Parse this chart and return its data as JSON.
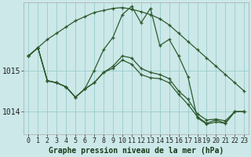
{
  "title": "Graphe pression niveau de la mer (hPa)",
  "bg_color": "#cce8e8",
  "line_color": "#2d5a2d",
  "grid_color": "#99cccc",
  "ylim": [
    1013.45,
    1016.65
  ],
  "ytick_vals": [
    1014.0,
    1015.0
  ],
  "xtick_vals": [
    0,
    1,
    2,
    3,
    4,
    5,
    6,
    7,
    8,
    9,
    10,
    11,
    12,
    13,
    14,
    15,
    16,
    17,
    18,
    19,
    20,
    21,
    22,
    23
  ],
  "series": [
    [
      1015.35,
      1015.55,
      1015.75,
      1015.9,
      1016.05,
      1016.2,
      1016.3,
      1016.4,
      1016.45,
      1016.5,
      1016.52,
      1016.48,
      1016.42,
      1016.35,
      1016.25,
      1016.1,
      1015.9,
      1015.7,
      1015.5,
      1015.3,
      1015.1,
      1014.9,
      1014.7,
      1014.5
    ],
    [
      1015.35,
      1015.55,
      1014.75,
      1014.7,
      1014.6,
      1014.35,
      1014.55,
      1015.0,
      1015.5,
      1015.8,
      1016.35,
      1016.55,
      1016.15,
      1016.5,
      1015.6,
      1015.75,
      1015.35,
      1014.85,
      1013.85,
      1013.7,
      1013.75,
      1013.72,
      1014.0,
      1014.0
    ],
    [
      1015.35,
      1015.55,
      1014.75,
      1014.7,
      1014.6,
      1014.35,
      1014.55,
      1014.7,
      1014.95,
      1015.1,
      1015.35,
      1015.3,
      1015.05,
      1014.95,
      1014.9,
      1014.8,
      1014.5,
      1014.3,
      1013.95,
      1013.8,
      1013.82,
      1013.78,
      1014.0,
      1014.0
    ],
    [
      1015.35,
      1015.55,
      1014.75,
      1014.7,
      1014.6,
      1014.35,
      1014.55,
      1014.7,
      1014.95,
      1015.05,
      1015.25,
      1015.15,
      1014.9,
      1014.82,
      1014.8,
      1014.7,
      1014.42,
      1014.18,
      1013.88,
      1013.72,
      1013.8,
      1013.72,
      1014.0,
      1014.0
    ]
  ],
  "lw": 0.9,
  "ms": 3.5,
  "tick_fs": 6,
  "title_fs": 7,
  "marker_ew": 0.9
}
